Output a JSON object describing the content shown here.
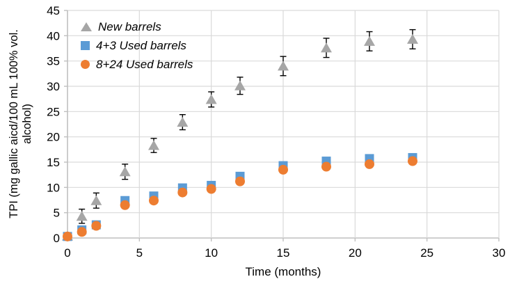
{
  "chart_data": {
    "type": "scatter",
    "title": "",
    "xlabel": "Time (months)",
    "ylabel": "TPI (mg gallic aicd/100 mL 100% vol. alcohol)",
    "ylabel_lines": [
      "TPI (mg gallic aicd/100 mL 100% vol.",
      "alcohol)"
    ],
    "xlim": [
      0,
      30
    ],
    "ylim": [
      0,
      45
    ],
    "x_ticks": [
      0,
      5,
      10,
      15,
      20,
      25,
      30
    ],
    "y_ticks": [
      0,
      5,
      10,
      15,
      20,
      25,
      30,
      35,
      40,
      45
    ],
    "grid": true,
    "legend_position": "top-left-inside",
    "x": [
      0,
      1,
      2,
      4,
      6,
      8,
      10,
      12,
      15,
      18,
      21,
      24
    ],
    "series": [
      {
        "name": "New barrels",
        "marker": "triangle",
        "color": "#a6a6a6",
        "values": [
          0.4,
          4.3,
          7.4,
          13.1,
          18.3,
          22.9,
          27.4,
          30.1,
          34.0,
          37.6,
          38.9,
          39.3
        ],
        "errors": [
          0,
          1.4,
          1.5,
          1.5,
          1.4,
          1.5,
          1.5,
          1.7,
          1.9,
          1.9,
          1.9,
          1.9
        ]
      },
      {
        "name": "4+3 Used barrels",
        "marker": "square",
        "color": "#5b9bd5",
        "values": [
          0.3,
          1.6,
          2.6,
          7.4,
          8.3,
          9.9,
          10.4,
          12.2,
          14.3,
          15.2,
          15.7,
          15.9
        ],
        "errors": null
      },
      {
        "name": "8+24 Used barrels",
        "marker": "circle",
        "color": "#ed7d31",
        "values": [
          0.3,
          1.2,
          2.4,
          6.5,
          7.4,
          9.0,
          9.7,
          11.2,
          13.5,
          14.1,
          14.6,
          15.2
        ],
        "errors": null
      }
    ]
  },
  "colors": {
    "gridline": "#d9d9d9",
    "axis_line": "#bfbfbf",
    "error_bar": "#000000",
    "tick_label": "#000000",
    "background": "#ffffff"
  }
}
